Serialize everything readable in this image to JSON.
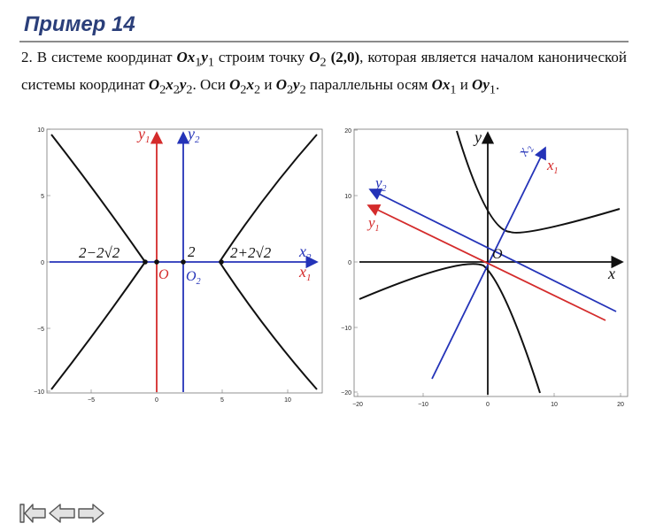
{
  "title": "Пример 14",
  "paragraph": {
    "p1": "2. В системе координат ",
    "s1": "Ox",
    "s1sub": "1",
    "s2": "y",
    "s2sub": "1",
    "p2": " строим точку ",
    "s3": "O",
    "s3sub": "2",
    "s4": " (2,0)",
    "p3": ", которая является началом канонической системы координат ",
    "s5": "O",
    "s5sub": "2",
    "s6": "x",
    "s6sub": "2",
    "s7": "y",
    "s7sub": "2",
    "p4": ". Оси ",
    "s8": "O",
    "s8sub": "2",
    "s9": "x",
    "s9sub": "2",
    "p5": " и ",
    "s10": "O",
    "s10sub": "2",
    "s11": "y",
    "s11sub": "2",
    "p6": "  параллельны осям ",
    "s12": "Ox",
    "s12sub": "1",
    "p7": " и ",
    "s13": "Oy",
    "s13sub": "1",
    "p8": "."
  },
  "left_plot": {
    "x_ticks": [
      "−5",
      "0",
      "5",
      "10"
    ],
    "y_ticks": [
      "10",
      "5",
      "0",
      "−5",
      "−10"
    ],
    "label_y1": "y",
    "label_y1_sub": "1",
    "label_y2": "y",
    "label_y2_sub": "2",
    "label_x2": "x",
    "label_x2_sub": "2",
    "label_x1": "x",
    "label_x1_sub": "1",
    "label_O": "O",
    "label_O2": "O",
    "label_O2_sub": "2",
    "label_left_vertex": "2−2√2",
    "label_center": "2",
    "label_right_vertex": "2+2√2",
    "colors": {
      "system1": "#d42b2b",
      "system2": "#2433b8",
      "curve": "#111111"
    }
  },
  "right_plot": {
    "x_ticks": [
      "−20",
      "−10",
      "0",
      "10",
      "20"
    ],
    "y_ticks": [
      "20",
      "10",
      "0",
      "−10",
      "−20"
    ],
    "label_x": "x",
    "label_y": "y",
    "label_x2": "x",
    "label_x2_sub": "2",
    "label_x1": "x",
    "label_x1_sub": "1",
    "label_y2": "y",
    "label_y2_sub": "2",
    "label_y1": "y",
    "label_y1_sub": "1",
    "label_O": "O",
    "colors": {
      "system1": "#d42b2b",
      "system2": "#2433b8",
      "curve": "#111111"
    }
  },
  "navigation": {
    "first": "first-slide",
    "prev": "previous-slide",
    "next": "next-slide"
  }
}
